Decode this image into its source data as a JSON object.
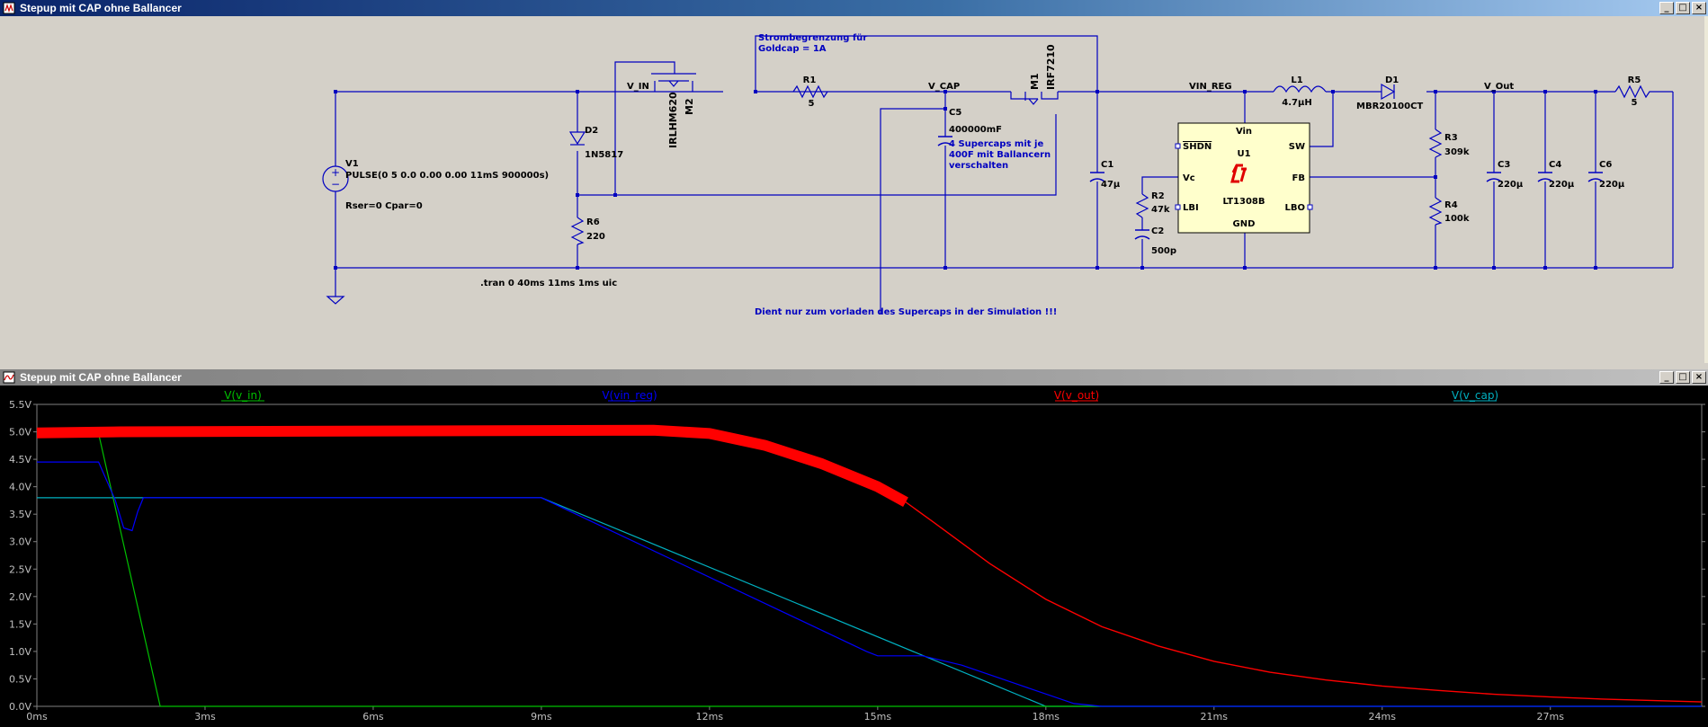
{
  "schematic_window": {
    "title": "Stepup mit CAP ohne Ballancer"
  },
  "plot_window": {
    "title": "Stepup mit CAP ohne Ballancer"
  },
  "controls": {
    "minimize": "_",
    "restore": "□",
    "close": "×"
  },
  "components": {
    "V1": {
      "ref": "V1",
      "value": "PULSE(0 5 0.0 0.00 0.00 11mS 900000s)",
      "extra": "Rser=0 Cpar=0"
    },
    "D2": {
      "ref": "D2",
      "value": "1N5817"
    },
    "R6": {
      "ref": "R6",
      "value": "220"
    },
    "M2": {
      "ref": "M2",
      "value": "IRLHM620"
    },
    "R1": {
      "ref": "R1",
      "value": "5"
    },
    "C5": {
      "ref": "C5",
      "value": "400000mF"
    },
    "M1": {
      "ref": "M1",
      "value": "IRF7210"
    },
    "C1": {
      "ref": "C1",
      "value": "47µ"
    },
    "R2": {
      "ref": "R2",
      "value": "47k"
    },
    "C2": {
      "ref": "C2",
      "value": "500p"
    },
    "U1": {
      "ref": "U1",
      "value": "LT1308B",
      "pins": {
        "vin": "Vin",
        "shdn": "SHDN",
        "sw": "SW",
        "vc": "Vc",
        "fb": "FB",
        "lbi": "LBI",
        "lbo": "LBO",
        "gnd": "GND"
      }
    },
    "L1": {
      "ref": "L1",
      "value": "4.7µH"
    },
    "D1": {
      "ref": "D1",
      "value": "MBR20100CT"
    },
    "R3": {
      "ref": "R3",
      "value": "309k"
    },
    "R4": {
      "ref": "R4",
      "value": "100k"
    },
    "C3": {
      "ref": "C3",
      "value": "220µ"
    },
    "C4": {
      "ref": "C4",
      "value": "220µ"
    },
    "C6": {
      "ref": "C6",
      "value": "220µ"
    },
    "R5": {
      "ref": "R5",
      "value": "5"
    }
  },
  "nets": {
    "v_in": "V_IN",
    "v_cap": "V_CAP",
    "vin_reg": "VIN_REG",
    "v_out": "V_Out"
  },
  "annotations": {
    "strom1": "Strombegrenzung für",
    "strom2": "Goldcap  = 1A",
    "super1": "4 Supercaps mit je",
    "super2": "400F mit Ballancern",
    "super3": "verschalten",
    "tran": ".tran 0 40ms 11ms 1ms uic",
    "dient": "Dient nur zum vorladen des Supercaps in der Simulation !!!"
  },
  "chart_data": {
    "type": "line",
    "x_unit": "ms",
    "xlim": [
      0,
      29.7
    ],
    "ylim": [
      0,
      5.5
    ],
    "x_ticks": [
      "0ms",
      "3ms",
      "6ms",
      "9ms",
      "12ms",
      "15ms",
      "18ms",
      "21ms",
      "24ms",
      "27ms"
    ],
    "y_ticks": [
      "0.0V",
      "0.5V",
      "1.0V",
      "1.5V",
      "2.0V",
      "2.5V",
      "3.0V",
      "3.5V",
      "4.0V",
      "4.5V",
      "5.0V",
      "5.5V"
    ],
    "series": [
      {
        "name": "V(v_in)",
        "color": "#00c000",
        "points": [
          [
            0,
            4.97
          ],
          [
            1.1,
            4.97
          ],
          [
            2.2,
            0
          ],
          [
            29.7,
            0
          ]
        ]
      },
      {
        "name": "V(vin_reg)",
        "color": "#0000ff",
        "points": [
          [
            0,
            4.45
          ],
          [
            1.1,
            4.45
          ],
          [
            1.4,
            3.75
          ],
          [
            1.55,
            3.25
          ],
          [
            1.7,
            3.2
          ],
          [
            1.8,
            3.55
          ],
          [
            1.9,
            3.8
          ],
          [
            9.0,
            3.8
          ],
          [
            14.8,
            1.0
          ],
          [
            15.0,
            0.92
          ],
          [
            15.8,
            0.92
          ],
          [
            16.5,
            0.75
          ],
          [
            17.5,
            0.4
          ],
          [
            18.5,
            0.05
          ],
          [
            19.0,
            0
          ],
          [
            29.7,
            0
          ]
        ]
      },
      {
        "name": "V(v_out)",
        "color": "#ff0000",
        "points": [
          [
            0,
            4.98
          ],
          [
            1.5,
            5.0
          ],
          [
            11.0,
            5.03
          ],
          [
            12.0,
            4.97
          ],
          [
            13.0,
            4.75
          ],
          [
            14.0,
            4.42
          ],
          [
            15.0,
            4.0
          ],
          [
            15.5,
            3.72
          ],
          [
            16.0,
            3.35
          ],
          [
            17.0,
            2.6
          ],
          [
            18.0,
            1.95
          ],
          [
            19.0,
            1.45
          ],
          [
            20.0,
            1.1
          ],
          [
            21.0,
            0.82
          ],
          [
            22.0,
            0.62
          ],
          [
            23.0,
            0.48
          ],
          [
            24.0,
            0.37
          ],
          [
            25.0,
            0.29
          ],
          [
            26.0,
            0.22
          ],
          [
            27.0,
            0.17
          ],
          [
            28.0,
            0.13
          ],
          [
            29.7,
            0.08
          ]
        ]
      },
      {
        "name": "V(v_cap)",
        "color": "#00b0c0",
        "points": [
          [
            0,
            3.8
          ],
          [
            9.0,
            3.8
          ],
          [
            18.0,
            0
          ],
          [
            29.7,
            0
          ]
        ]
      }
    ]
  }
}
